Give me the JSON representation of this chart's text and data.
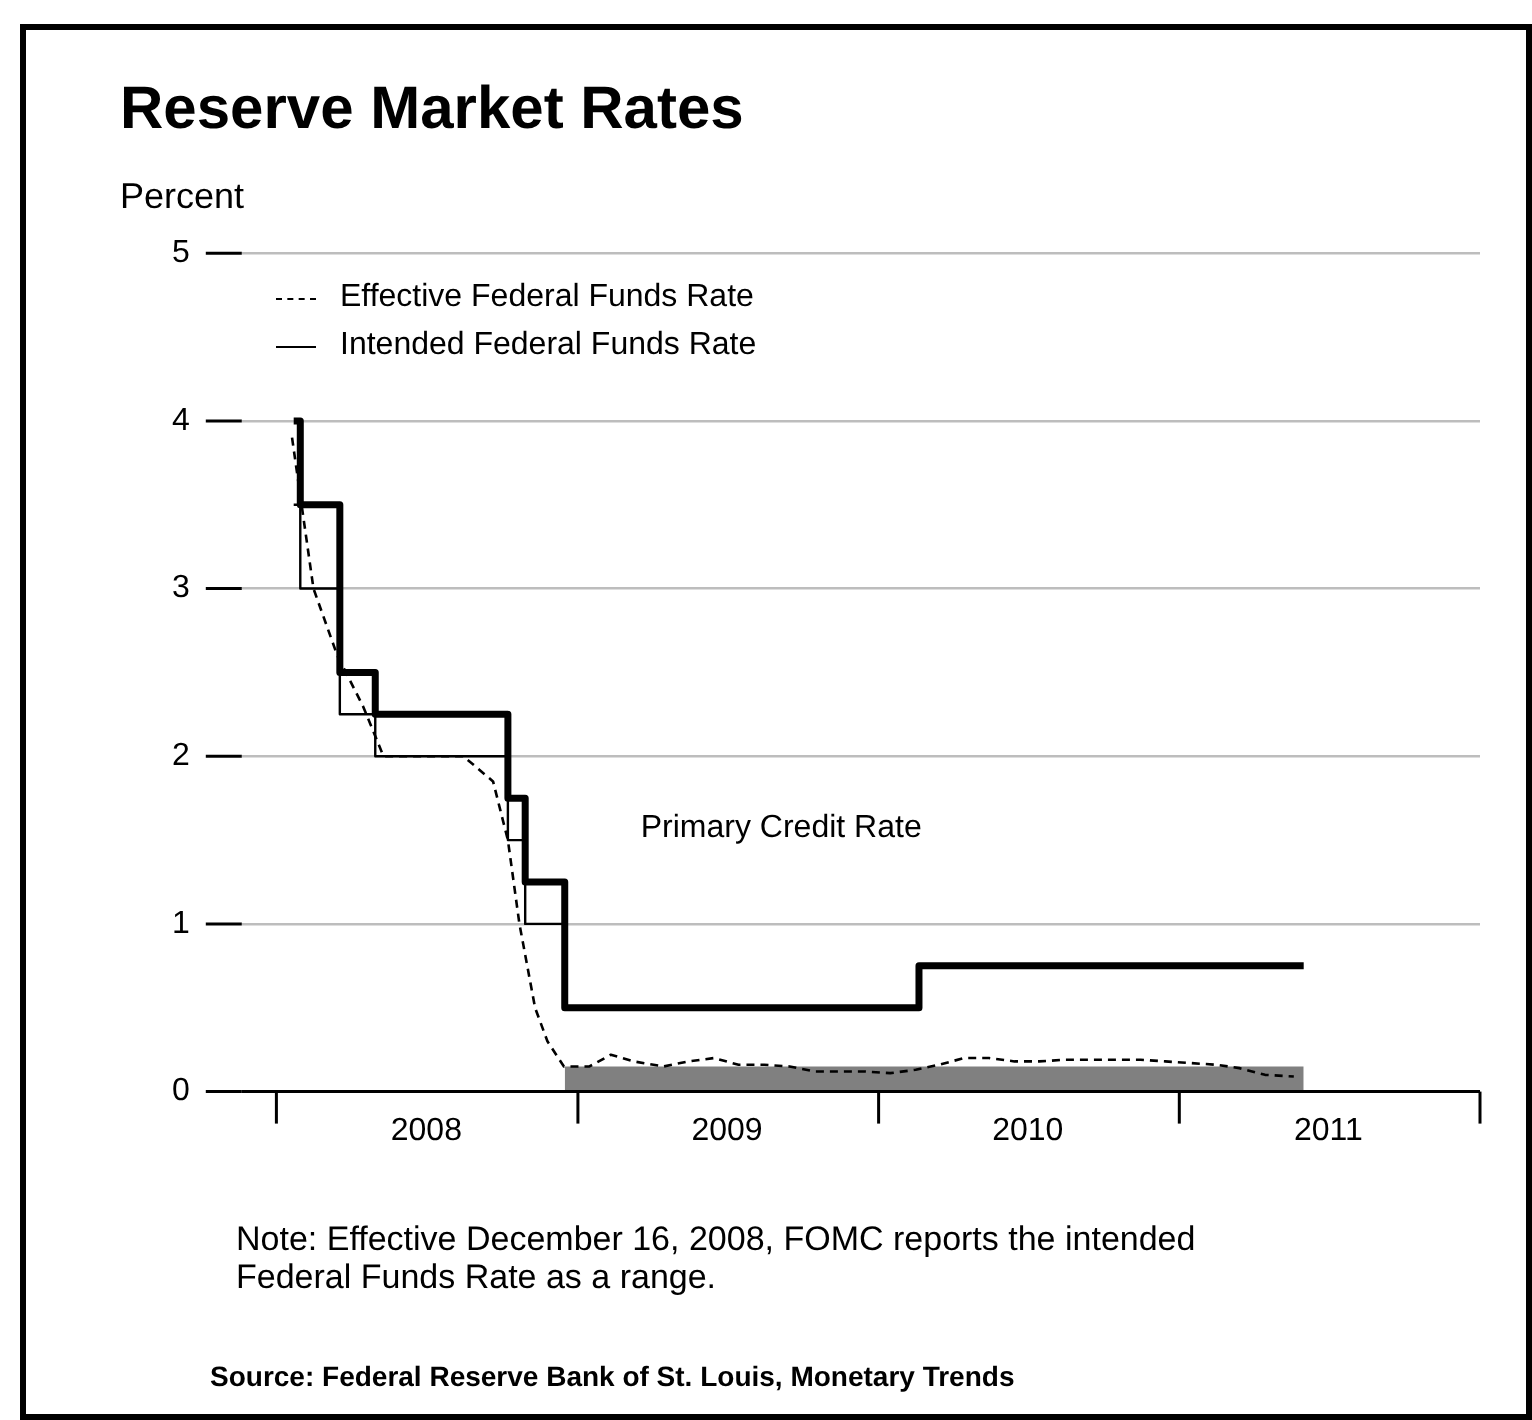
{
  "chart_data": {
    "type": "line",
    "title": "Reserve Market Rates",
    "ylabel": "Percent",
    "xlim": [
      "2007-11-20",
      "2012-01-01"
    ],
    "xticks": [
      {
        "value": "2008-01-01",
        "label": null
      },
      {
        "value": "2008-07-01",
        "label": "2008"
      },
      {
        "value": "2009-01-01",
        "label": null
      },
      {
        "value": "2009-07-01",
        "label": "2009"
      },
      {
        "value": "2010-01-01",
        "label": null
      },
      {
        "value": "2010-07-01",
        "label": "2010"
      },
      {
        "value": "2011-01-01",
        "label": null
      },
      {
        "value": "2011-07-01",
        "label": "2011"
      },
      {
        "value": "2012-01-01",
        "label": null
      }
    ],
    "ylim": [
      0,
      5
    ],
    "yticks": [
      0,
      1,
      2,
      3,
      4,
      5
    ],
    "grid": "y",
    "legend": "top left",
    "series": [
      {
        "name": "Effective Federal Funds Rate",
        "line_style": "dashed",
        "color": "#000000",
        "x": [
          "2008-01-20",
          "2008-02-15",
          "2008-03-15",
          "2008-04-15",
          "2008-05-10",
          "2008-06-15",
          "2008-07-15",
          "2008-08-15",
          "2008-09-20",
          "2008-10-08",
          "2008-10-22",
          "2008-11-10",
          "2008-11-25",
          "2008-12-15",
          "2009-01-15",
          "2009-02-10",
          "2009-03-10",
          "2009-04-15",
          "2009-05-15",
          "2009-06-15",
          "2009-07-15",
          "2009-08-15",
          "2009-09-15",
          "2009-10-15",
          "2009-11-15",
          "2009-12-15",
          "2010-01-15",
          "2010-02-15",
          "2010-03-15",
          "2010-04-15",
          "2010-05-15",
          "2010-06-15",
          "2010-07-15",
          "2010-08-15",
          "2010-09-15",
          "2010-10-15",
          "2010-11-15",
          "2010-12-15",
          "2011-01-15",
          "2011-02-15",
          "2011-03-15",
          "2011-04-15",
          "2011-05-20"
        ],
        "values": [
          3.9,
          3.0,
          2.6,
          2.3,
          2.0,
          2.0,
          2.0,
          2.0,
          1.85,
          1.5,
          1.0,
          0.5,
          0.3,
          0.15,
          0.15,
          0.22,
          0.18,
          0.15,
          0.18,
          0.2,
          0.16,
          0.16,
          0.15,
          0.12,
          0.12,
          0.12,
          0.11,
          0.13,
          0.16,
          0.2,
          0.2,
          0.18,
          0.18,
          0.19,
          0.19,
          0.19,
          0.19,
          0.18,
          0.17,
          0.16,
          0.14,
          0.1,
          0.09
        ]
      },
      {
        "name": "Intended Federal Funds Rate",
        "type": "step",
        "line_style": "solid",
        "color": "#000000",
        "x": [
          "2008-01-22",
          "2008-01-30",
          "2008-03-18",
          "2008-04-30",
          "2008-10-08",
          "2008-10-29",
          "2008-12-16"
        ],
        "values": [
          3.5,
          3.0,
          2.25,
          2.0,
          1.5,
          1.0,
          1.0
        ]
      },
      {
        "name": "Primary Credit Rate",
        "type": "step",
        "line_style": "solid",
        "color": "#000000",
        "x": [
          "2008-01-22",
          "2008-01-30",
          "2008-03-18",
          "2008-04-30",
          "2008-10-08",
          "2008-10-29",
          "2008-12-16",
          "2010-02-19",
          "2011-06-01"
        ],
        "values": [
          4.0,
          3.5,
          2.5,
          2.25,
          1.75,
          1.25,
          0.5,
          0.75,
          0.75
        ]
      },
      {
        "type": "area",
        "color": "#808080",
        "x": [
          "2008-12-16",
          "2011-06-01"
        ],
        "values": [
          0.15,
          0.15
        ]
      }
    ],
    "annotations": [
      "Note: Effective December 16, 2008, FOMC reports the intended Federal Funds Rate as a range.",
      "Source: Federal Reserve Bank of St. Louis, Monetary Trends"
    ]
  }
}
